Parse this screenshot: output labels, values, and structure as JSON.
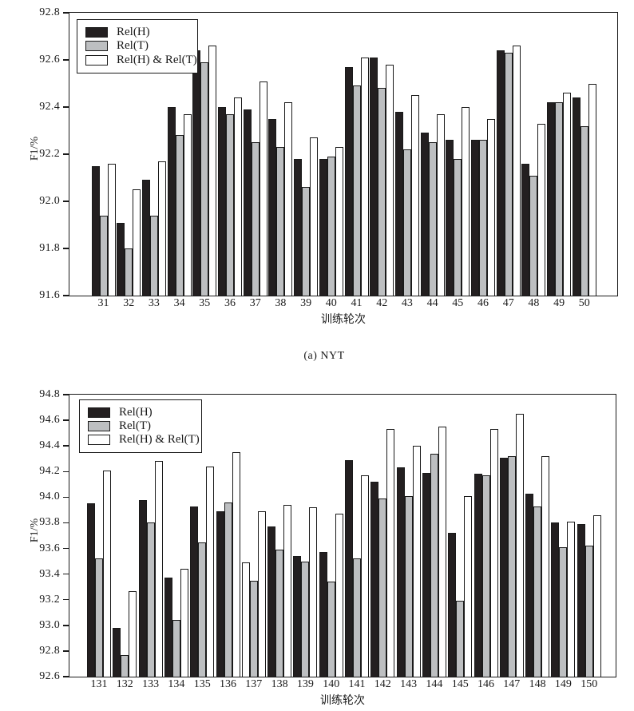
{
  "page_title": "F1 score vs training epoch bar charts",
  "colors": {
    "bar_black": "#231f20",
    "bar_gray": "#bdbfc1",
    "bar_white": "#ffffff",
    "outline": "#1a1a1a",
    "background": "#ffffff"
  },
  "chart_data": [
    {
      "type": "bar",
      "title": "",
      "caption": "(a) NYT",
      "ylabel": "F1/%",
      "xlabel": "训练轮次",
      "ylim": [
        91.6,
        92.8
      ],
      "ytick_step": 0.2,
      "grid": false,
      "legend_position": "upper-left-inside",
      "categories": [
        "31",
        "32",
        "33",
        "34",
        "35",
        "36",
        "37",
        "38",
        "39",
        "40",
        "41",
        "42",
        "43",
        "44",
        "45",
        "46",
        "47",
        "48",
        "49",
        "50"
      ],
      "series": [
        {
          "name": "Rel(H)",
          "fill": "black",
          "values": [
            92.15,
            91.91,
            92.09,
            92.4,
            92.64,
            92.4,
            92.39,
            92.35,
            92.18,
            92.18,
            92.57,
            92.61,
            92.38,
            92.29,
            92.26,
            92.26,
            92.64,
            92.16,
            92.42,
            92.44
          ]
        },
        {
          "name": "Rel(T)",
          "fill": "gray",
          "values": [
            91.94,
            91.8,
            91.94,
            92.28,
            92.59,
            92.37,
            92.25,
            92.23,
            92.06,
            92.19,
            92.49,
            92.48,
            92.22,
            92.25,
            92.18,
            92.26,
            92.63,
            92.11,
            92.42,
            92.32
          ]
        },
        {
          "name": "Rel(H) & Rel(T)",
          "fill": "white",
          "values": [
            92.16,
            92.05,
            92.17,
            92.37,
            92.66,
            92.44,
            92.51,
            92.42,
            92.27,
            92.23,
            92.61,
            92.58,
            92.45,
            92.37,
            92.4,
            92.35,
            92.66,
            92.33,
            92.46,
            92.5
          ]
        }
      ],
      "anomalies": {
        "white_filled_h_bars": []
      }
    },
    {
      "type": "bar",
      "title": "",
      "caption": "",
      "ylabel": "F1/%",
      "xlabel": "训练轮次",
      "ylim": [
        92.6,
        94.8
      ],
      "ytick_step": 0.2,
      "grid": false,
      "legend_position": "upper-left-inside",
      "categories": [
        "131",
        "132",
        "133",
        "134",
        "135",
        "136",
        "137",
        "138",
        "139",
        "140",
        "141",
        "142",
        "143",
        "144",
        "145",
        "146",
        "147",
        "148",
        "149",
        "150"
      ],
      "series": [
        {
          "name": "Rel(H)",
          "fill": "black",
          "values": [
            93.95,
            92.98,
            93.98,
            93.37,
            93.93,
            93.89,
            93.49,
            93.77,
            93.54,
            93.57,
            94.29,
            94.12,
            94.23,
            94.19,
            93.72,
            94.18,
            94.31,
            94.03,
            93.8,
            93.79
          ]
        },
        {
          "name": "Rel(T)",
          "fill": "gray",
          "values": [
            93.52,
            92.77,
            93.8,
            93.04,
            93.65,
            93.96,
            93.35,
            93.59,
            93.5,
            93.34,
            93.52,
            93.99,
            94.01,
            94.34,
            93.19,
            94.17,
            94.32,
            93.93,
            93.61,
            93.62
          ]
        },
        {
          "name": "Rel(H) & Rel(T)",
          "fill": "white",
          "values": [
            94.21,
            93.27,
            94.28,
            93.44,
            94.24,
            94.35,
            93.89,
            93.94,
            93.92,
            93.87,
            94.17,
            94.53,
            94.4,
            94.55,
            94.01,
            94.53,
            94.65,
            94.32,
            93.81,
            93.86
          ]
        }
      ],
      "anomalies": {
        "white_filled_h_bars": [
          "137"
        ]
      }
    }
  ]
}
